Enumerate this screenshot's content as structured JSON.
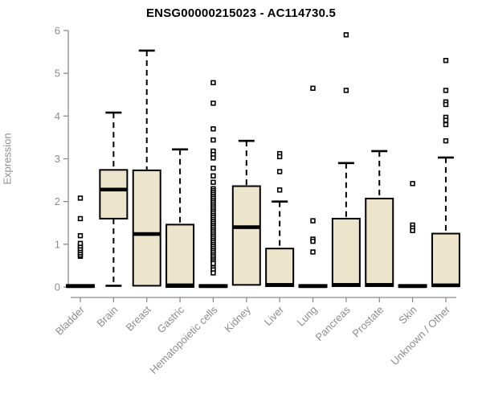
{
  "title": "ENSG00000215023 - AC114730.5",
  "y_axis_label": "Expression",
  "chart_data": {
    "type": "boxplot",
    "title": "ENSG00000215023 - AC114730.5",
    "xlabel": "",
    "ylabel": "Expression",
    "ylim": [
      0,
      6
    ],
    "yticks": [
      0,
      1,
      2,
      3,
      4,
      5,
      6
    ],
    "grid": false,
    "legend": false,
    "colors": {
      "box_fill": "#ECE5CB",
      "box_stroke": "#000000",
      "median": "#000000",
      "axis": "#8C8C8C",
      "tick_label": "#8C8C8C",
      "title": "#000000"
    },
    "categories": [
      "Bladder",
      "Brain",
      "Breast",
      "Gastric",
      "Hematopoietic cells",
      "Kidney",
      "Liver",
      "Lung",
      "Pancreas",
      "Prostate",
      "Skin",
      "Unknown / Other"
    ],
    "series": [
      {
        "category": "Bladder",
        "whisker_low": 0,
        "q1": 0,
        "median": 0.02,
        "q3": 0.05,
        "whisker_high": 0.05,
        "outliers": [
          0.72,
          0.75,
          0.8,
          0.85,
          0.9,
          0.96,
          1.02,
          1.2,
          1.6,
          2.08
        ]
      },
      {
        "category": "Brain",
        "whisker_low": 0.03,
        "q1": 1.6,
        "median": 2.28,
        "q3": 2.74,
        "whisker_high": 4.08,
        "outliers": []
      },
      {
        "category": "Breast",
        "whisker_low": 0.03,
        "q1": 0.03,
        "median": 1.24,
        "q3": 2.73,
        "whisker_high": 5.53,
        "outliers": []
      },
      {
        "category": "Gastric",
        "whisker_low": 0,
        "q1": 0,
        "median": 0.04,
        "q3": 1.46,
        "whisker_high": 3.22,
        "outliers": []
      },
      {
        "category": "Hematopoietic cells",
        "whisker_low": 0,
        "q1": 0,
        "median": 0.02,
        "q3": 0.05,
        "whisker_high": 0.05,
        "outliers": [
          4.78,
          4.3,
          3.7,
          3.44,
          3.18,
          3.1,
          3.02,
          2.78,
          2.6,
          2.45,
          2.3,
          2.255,
          2.21,
          2.165,
          2.12,
          2.075,
          2.03,
          1.985,
          1.94,
          1.895,
          1.85,
          1.805,
          1.76,
          1.715,
          1.67,
          1.625,
          1.58,
          1.535,
          1.49,
          1.445,
          1.4,
          1.355,
          1.31,
          1.265,
          1.22,
          1.175,
          1.13,
          1.085,
          1.04,
          0.995,
          0.95,
          0.905,
          0.86,
          0.815,
          0.77,
          0.725,
          0.68,
          0.635,
          0.59,
          0.55,
          0.45,
          0.4,
          0.33
        ]
      },
      {
        "category": "Kidney",
        "whisker_low": 0.05,
        "q1": 0.05,
        "median": 1.4,
        "q3": 2.36,
        "whisker_high": 3.42,
        "outliers": []
      },
      {
        "category": "Liver",
        "whisker_low": 0.02,
        "q1": 0.02,
        "median": 0.05,
        "q3": 0.9,
        "whisker_high": 2.0,
        "outliers": [
          3.12,
          3.05,
          2.7,
          2.27
        ]
      },
      {
        "category": "Lung",
        "whisker_low": 0,
        "q1": 0,
        "median": 0.02,
        "q3": 0.05,
        "whisker_high": 0.05,
        "outliers": [
          4.65,
          1.55,
          1.12,
          1.07,
          0.82
        ]
      },
      {
        "category": "Pancreas",
        "whisker_low": 0.02,
        "q1": 0.02,
        "median": 0.05,
        "q3": 1.6,
        "whisker_high": 2.9,
        "outliers": [
          5.9,
          4.6
        ]
      },
      {
        "category": "Prostate",
        "whisker_low": 0.02,
        "q1": 0.02,
        "median": 0.05,
        "q3": 2.07,
        "whisker_high": 3.18,
        "outliers": []
      },
      {
        "category": "Skin",
        "whisker_low": 0,
        "q1": 0,
        "median": 0.02,
        "q3": 0.05,
        "whisker_high": 0.05,
        "outliers": [
          2.42,
          1.45,
          1.38,
          1.32
        ]
      },
      {
        "category": "Unknown / Other",
        "whisker_low": 0.02,
        "q1": 0.02,
        "median": 0.04,
        "q3": 1.25,
        "whisker_high": 3.03,
        "outliers": [
          5.3,
          4.6,
          4.33,
          4.27,
          3.97,
          3.9,
          3.8,
          3.42
        ]
      }
    ]
  }
}
